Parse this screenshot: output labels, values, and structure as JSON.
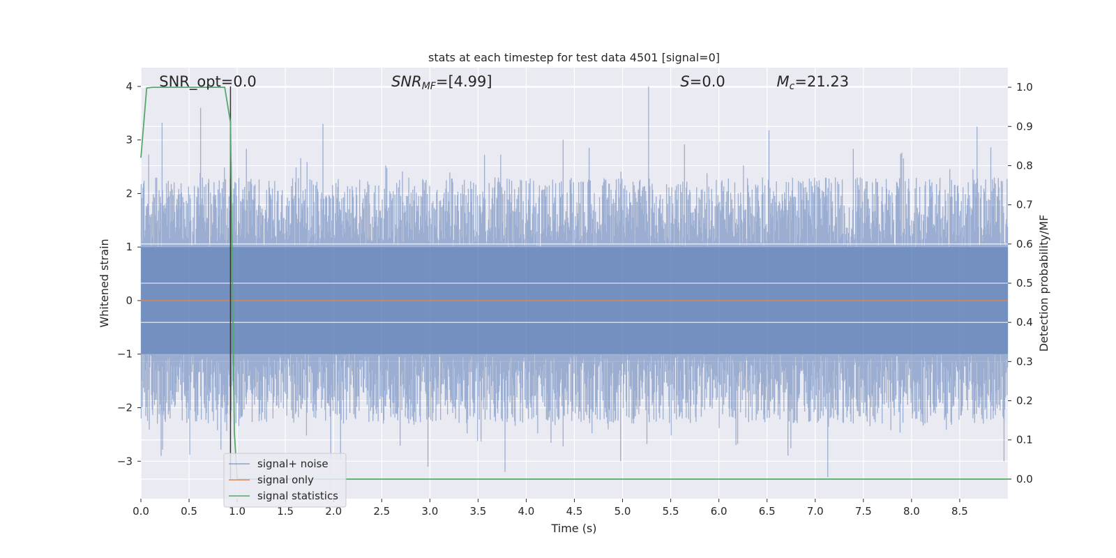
{
  "chart_data": {
    "type": "line",
    "title": "stats at each timestep for test data 4501 [signal=0]",
    "xlabel": "Time (s)",
    "ylabel": "Whitened strain",
    "y2label": "Detection probability/MF",
    "xlim": [
      0.0,
      9.0
    ],
    "ylim": [
      -3.7,
      4.35
    ],
    "y2lim": [
      -0.05,
      1.05
    ],
    "xticks": [
      "0.0",
      "0.5",
      "1.0",
      "1.5",
      "2.0",
      "2.5",
      "3.0",
      "3.5",
      "4.0",
      "4.5",
      "5.0",
      "5.5",
      "6.0",
      "6.5",
      "7.0",
      "7.5",
      "8.0",
      "8.5"
    ],
    "yticks": [
      "−3",
      "−2",
      "−1",
      "0",
      "1",
      "2",
      "3",
      "4"
    ],
    "y2ticks": [
      "0.0",
      "0.1",
      "0.2",
      "0.3",
      "0.4",
      "0.5",
      "0.6",
      "0.7",
      "0.8",
      "0.9",
      "1.0"
    ],
    "grid": true,
    "legend_position": "lower-left",
    "annotations": [
      {
        "text": "SNR_opt=0.0",
        "x": 0.19
      },
      {
        "text": "SNR",
        "sub": "MF",
        "suffix": "=[4.99]",
        "x": 2.6
      },
      {
        "text": "S",
        "suffix": "=0.0",
        "x": 5.6
      },
      {
        "text": "M",
        "sub": "c",
        "suffix": "=21.23",
        "x": 6.6
      }
    ],
    "series": [
      {
        "name": "signal+ noise",
        "color": "#4c72b0",
        "style": "dense noise band",
        "envelope_peaks": [
          {
            "x": 0.22,
            "y": 3.32
          },
          {
            "x": 0.62,
            "y": 3.6
          },
          {
            "x": 1.89,
            "y": 3.3
          },
          {
            "x": 5.27,
            "y": 4.0
          },
          {
            "x": 6.52,
            "y": 3.18
          },
          {
            "x": 8.68,
            "y": 3.25
          },
          {
            "x": 0.21,
            "y": -2.9
          },
          {
            "x": 2.98,
            "y": -3.1
          },
          {
            "x": 3.78,
            "y": -3.2
          },
          {
            "x": 4.98,
            "y": -3.0
          },
          {
            "x": 7.13,
            "y": -3.3
          },
          {
            "x": 8.96,
            "y": -3.0
          }
        ]
      },
      {
        "name": "signal only",
        "color": "#dd8452",
        "x": [
          0.0,
          9.0
        ],
        "y": [
          0.0,
          0.0
        ]
      },
      {
        "name": "signal statistics",
        "color": "#55a868",
        "axis": "right",
        "x": [
          0.0,
          0.06,
          0.12,
          0.5,
          0.87,
          0.93,
          0.97,
          1.0,
          9.0
        ],
        "y": [
          0.82,
          0.998,
          1.0,
          1.0,
          1.0,
          0.91,
          0.12,
          0.0,
          0.0
        ]
      }
    ],
    "vline": {
      "x": 0.93,
      "color": "#333333"
    }
  }
}
